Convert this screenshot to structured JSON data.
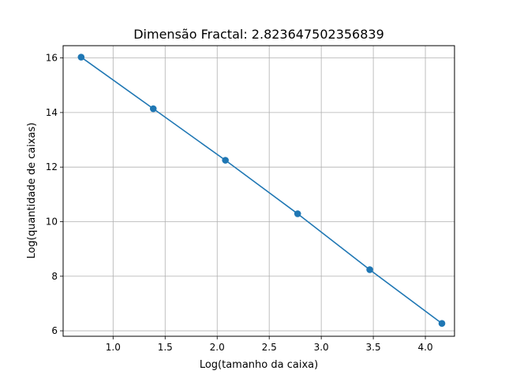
{
  "chart_data": {
    "type": "line",
    "title": "Dimensão Fractal: 2.823647502356839",
    "xlabel": "Log(tamanho da caixa)",
    "ylabel": "Log(quantidade de caixas)",
    "xlim": [
      0.52,
      4.28
    ],
    "ylim": [
      5.8,
      16.45
    ],
    "xticks": [
      1.0,
      1.5,
      2.0,
      2.5,
      3.0,
      3.5,
      4.0
    ],
    "xtick_labels": [
      "1.0",
      "1.5",
      "2.0",
      "2.5",
      "3.0",
      "3.5",
      "4.0"
    ],
    "yticks": [
      6,
      8,
      10,
      12,
      14,
      16
    ],
    "ytick_labels": [
      "6",
      "8",
      "10",
      "12",
      "14",
      "16"
    ],
    "grid": true,
    "series": [
      {
        "color": "#1f77b4",
        "marker": "circle",
        "x": [
          0.693,
          1.386,
          2.079,
          2.773,
          3.466,
          4.159
        ],
        "y": [
          16.03,
          14.14,
          12.25,
          10.29,
          8.24,
          6.27
        ]
      }
    ]
  }
}
